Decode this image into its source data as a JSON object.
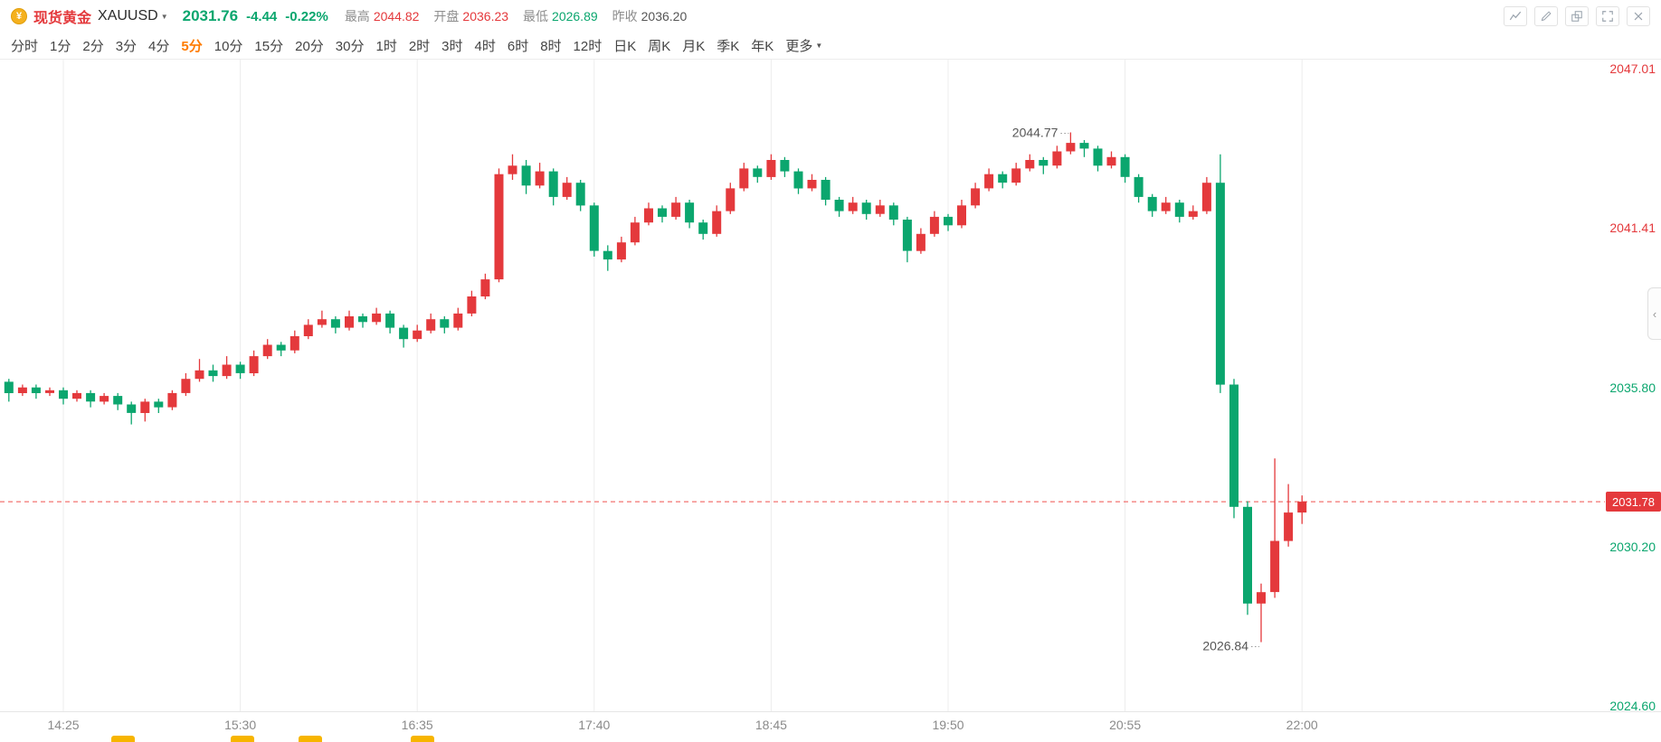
{
  "header": {
    "coin_glyph": "¥",
    "instrument_name": "现货黄金",
    "symbol": "XAUUSD",
    "price": "2031.76",
    "change": "-4.44",
    "change_pct": "-0.22%",
    "stats": [
      {
        "key": "high",
        "label": "最高",
        "value": "2044.82",
        "dir": "up"
      },
      {
        "key": "open",
        "label": "开盘",
        "value": "2036.23",
        "dir": "up"
      },
      {
        "key": "low",
        "label": "最低",
        "value": "2026.89",
        "dir": "down"
      },
      {
        "key": "prev-close",
        "label": "昨收",
        "value": "2036.20",
        "dir": "neutral"
      }
    ],
    "tools": [
      "line-chart",
      "draw-pencil",
      "compare-overlay",
      "fullscreen-expand",
      "close"
    ]
  },
  "timeframes": {
    "items": [
      "分时",
      "1分",
      "2分",
      "3分",
      "4分",
      "5分",
      "10分",
      "15分",
      "20分",
      "30分",
      "1时",
      "2时",
      "3时",
      "4时",
      "6时",
      "8时",
      "12时",
      "日K",
      "周K",
      "月K",
      "季K",
      "年K"
    ],
    "active": "5分",
    "more_label": "更多"
  },
  "collapse_glyph": "‹",
  "bottom_strip": {
    "marks": 4
  },
  "chart_data": {
    "type": "candlestick",
    "symbol": "XAUUSD",
    "interval": "5分",
    "y_axis": {
      "min": 2024.6,
      "max": 2047.01,
      "ticks": [
        {
          "label": "2047.01",
          "value": 2047.01,
          "dir": "up"
        },
        {
          "label": "2041.41",
          "value": 2041.41,
          "dir": "up"
        },
        {
          "label": "2035.80",
          "value": 2035.8,
          "dir": "down"
        },
        {
          "label": "2030.20",
          "value": 2030.2,
          "dir": "down"
        },
        {
          "label": "2024.60",
          "value": 2024.6,
          "dir": "down"
        }
      ]
    },
    "x_ticks": [
      {
        "index": 4,
        "label": "14:25"
      },
      {
        "index": 17,
        "label": "15:30"
      },
      {
        "index": 30,
        "label": "16:35"
      },
      {
        "index": 43,
        "label": "17:40"
      },
      {
        "index": 56,
        "label": "18:45"
      },
      {
        "index": 69,
        "label": "19:50"
      },
      {
        "index": 82,
        "label": "20:55"
      },
      {
        "index": 95,
        "label": "22:00"
      }
    ],
    "current_price": {
      "label": "2031.78",
      "value": 2031.78
    },
    "annotations": [
      {
        "label": "2044.77",
        "value": 2044.77,
        "index": 78,
        "type": "high"
      },
      {
        "label": "2026.84",
        "value": 2026.84,
        "index": 92,
        "type": "low"
      }
    ],
    "colors": {
      "up": "#e4393c",
      "down": "#0ba66e",
      "grid": "#ececec",
      "dashed": "#f0504f",
      "axis_text": "#8a8a8a",
      "annotation_text": "#555555",
      "active_tab": "#ff7c00"
    },
    "candles_ohlc": [
      [
        2036.0,
        2036.1,
        2035.3,
        2035.6
      ],
      [
        2035.6,
        2035.9,
        2035.5,
        2035.8
      ],
      [
        2035.8,
        2035.9,
        2035.4,
        2035.6
      ],
      [
        2035.6,
        2035.8,
        2035.5,
        2035.7
      ],
      [
        2035.7,
        2035.8,
        2035.2,
        2035.4
      ],
      [
        2035.4,
        2035.7,
        2035.3,
        2035.6
      ],
      [
        2035.6,
        2035.7,
        2035.1,
        2035.3
      ],
      [
        2035.3,
        2035.6,
        2035.2,
        2035.5
      ],
      [
        2035.5,
        2035.6,
        2035.0,
        2035.2
      ],
      [
        2035.2,
        2035.3,
        2034.5,
        2034.9
      ],
      [
        2034.9,
        2035.4,
        2034.6,
        2035.3
      ],
      [
        2035.3,
        2035.4,
        2034.9,
        2035.1
      ],
      [
        2035.1,
        2035.7,
        2035.0,
        2035.6
      ],
      [
        2035.6,
        2036.3,
        2035.5,
        2036.1
      ],
      [
        2036.1,
        2036.8,
        2036.0,
        2036.4
      ],
      [
        2036.4,
        2036.6,
        2036.0,
        2036.2
      ],
      [
        2036.2,
        2036.9,
        2036.1,
        2036.6
      ],
      [
        2036.6,
        2036.7,
        2036.1,
        2036.3
      ],
      [
        2036.3,
        2037.1,
        2036.2,
        2036.9
      ],
      [
        2036.9,
        2037.5,
        2036.8,
        2037.3
      ],
      [
        2037.3,
        2037.4,
        2036.9,
        2037.1
      ],
      [
        2037.1,
        2037.8,
        2037.0,
        2037.6
      ],
      [
        2037.6,
        2038.2,
        2037.5,
        2038.0
      ],
      [
        2038.0,
        2038.5,
        2037.9,
        2038.2
      ],
      [
        2038.2,
        2038.3,
        2037.7,
        2037.9
      ],
      [
        2037.9,
        2038.5,
        2037.8,
        2038.3
      ],
      [
        2038.3,
        2038.4,
        2037.9,
        2038.1
      ],
      [
        2038.1,
        2038.6,
        2038.0,
        2038.4
      ],
      [
        2038.4,
        2038.5,
        2037.7,
        2037.9
      ],
      [
        2037.9,
        2038.0,
        2037.2,
        2037.5
      ],
      [
        2037.5,
        2038.0,
        2037.4,
        2037.8
      ],
      [
        2037.8,
        2038.4,
        2037.7,
        2038.2
      ],
      [
        2038.2,
        2038.3,
        2037.7,
        2037.9
      ],
      [
        2037.9,
        2038.6,
        2037.8,
        2038.4
      ],
      [
        2038.4,
        2039.2,
        2038.3,
        2039.0
      ],
      [
        2039.0,
        2039.8,
        2038.9,
        2039.6
      ],
      [
        2039.6,
        2043.5,
        2039.5,
        2043.3
      ],
      [
        2043.3,
        2044.0,
        2043.1,
        2043.6
      ],
      [
        2043.6,
        2043.8,
        2042.6,
        2042.9
      ],
      [
        2042.9,
        2043.7,
        2042.8,
        2043.4
      ],
      [
        2043.4,
        2043.5,
        2042.2,
        2042.5
      ],
      [
        2042.5,
        2043.2,
        2042.4,
        2043.0
      ],
      [
        2043.0,
        2043.1,
        2042.0,
        2042.2
      ],
      [
        2042.2,
        2042.3,
        2040.4,
        2040.6
      ],
      [
        2040.6,
        2040.8,
        2039.9,
        2040.3
      ],
      [
        2040.3,
        2041.1,
        2040.2,
        2040.9
      ],
      [
        2040.9,
        2041.8,
        2040.8,
        2041.6
      ],
      [
        2041.6,
        2042.3,
        2041.5,
        2042.1
      ],
      [
        2042.1,
        2042.2,
        2041.6,
        2041.8
      ],
      [
        2041.8,
        2042.5,
        2041.7,
        2042.3
      ],
      [
        2042.3,
        2042.4,
        2041.4,
        2041.6
      ],
      [
        2041.6,
        2041.7,
        2041.0,
        2041.2
      ],
      [
        2041.2,
        2042.2,
        2041.1,
        2042.0
      ],
      [
        2042.0,
        2043.0,
        2041.9,
        2042.8
      ],
      [
        2042.8,
        2043.7,
        2042.7,
        2043.5
      ],
      [
        2043.5,
        2043.6,
        2043.0,
        2043.2
      ],
      [
        2043.2,
        2044.0,
        2043.1,
        2043.8
      ],
      [
        2043.8,
        2043.9,
        2043.2,
        2043.4
      ],
      [
        2043.4,
        2043.5,
        2042.6,
        2042.8
      ],
      [
        2042.8,
        2043.3,
        2042.7,
        2043.1
      ],
      [
        2043.1,
        2043.2,
        2042.2,
        2042.4
      ],
      [
        2042.4,
        2042.5,
        2041.8,
        2042.0
      ],
      [
        2042.0,
        2042.5,
        2041.9,
        2042.3
      ],
      [
        2042.3,
        2042.4,
        2041.7,
        2041.9
      ],
      [
        2041.9,
        2042.4,
        2041.8,
        2042.2
      ],
      [
        2042.2,
        2042.3,
        2041.5,
        2041.7
      ],
      [
        2041.7,
        2041.8,
        2040.2,
        2040.6
      ],
      [
        2040.6,
        2041.4,
        2040.5,
        2041.2
      ],
      [
        2041.2,
        2042.0,
        2041.1,
        2041.8
      ],
      [
        2041.8,
        2041.9,
        2041.3,
        2041.5
      ],
      [
        2041.5,
        2042.4,
        2041.4,
        2042.2
      ],
      [
        2042.2,
        2043.0,
        2042.1,
        2042.8
      ],
      [
        2042.8,
        2043.5,
        2042.7,
        2043.3
      ],
      [
        2043.3,
        2043.4,
        2042.8,
        2043.0
      ],
      [
        2043.0,
        2043.7,
        2042.9,
        2043.5
      ],
      [
        2043.5,
        2044.0,
        2043.4,
        2043.8
      ],
      [
        2043.8,
        2043.9,
        2043.3,
        2043.6
      ],
      [
        2043.6,
        2044.3,
        2043.5,
        2044.1
      ],
      [
        2044.1,
        2044.77,
        2044.0,
        2044.4
      ],
      [
        2044.4,
        2044.5,
        2043.9,
        2044.2
      ],
      [
        2044.2,
        2044.3,
        2043.4,
        2043.6
      ],
      [
        2043.6,
        2044.1,
        2043.5,
        2043.9
      ],
      [
        2043.9,
        2044.0,
        2043.0,
        2043.2
      ],
      [
        2043.2,
        2043.3,
        2042.3,
        2042.5
      ],
      [
        2042.5,
        2042.6,
        2041.8,
        2042.0
      ],
      [
        2042.0,
        2042.5,
        2041.9,
        2042.3
      ],
      [
        2042.3,
        2042.4,
        2041.6,
        2041.8
      ],
      [
        2041.8,
        2042.2,
        2041.7,
        2042.0
      ],
      [
        2042.0,
        2043.2,
        2041.9,
        2043.0
      ],
      [
        2043.0,
        2044.0,
        2035.6,
        2035.9
      ],
      [
        2035.9,
        2036.1,
        2031.2,
        2031.6
      ],
      [
        2031.6,
        2031.8,
        2027.8,
        2028.2
      ],
      [
        2028.2,
        2028.9,
        2026.84,
        2028.6
      ],
      [
        2028.6,
        2033.3,
        2028.4,
        2030.4
      ],
      [
        2030.4,
        2032.4,
        2030.2,
        2031.4
      ],
      [
        2031.4,
        2032.0,
        2031.0,
        2031.78
      ]
    ]
  }
}
